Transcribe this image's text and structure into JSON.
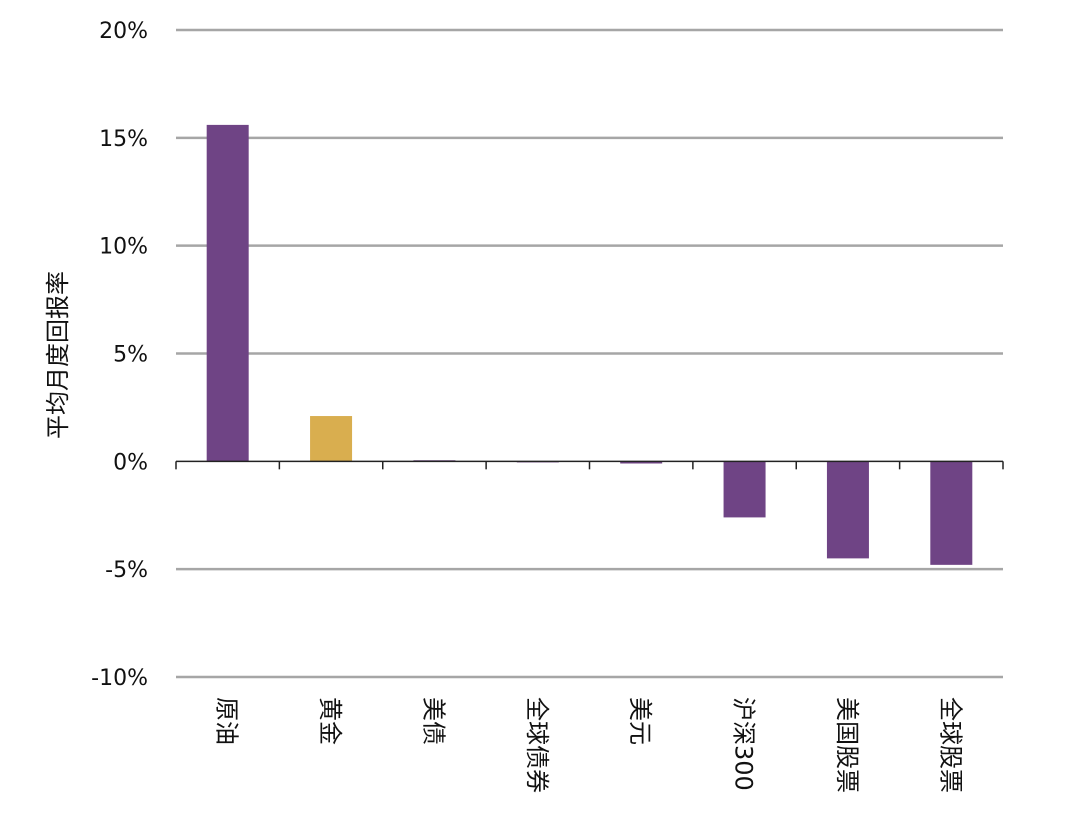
{
  "chart_data": {
    "type": "bar",
    "title": "",
    "xlabel": "",
    "ylabel": "平均月度回报率",
    "categories": [
      "原油",
      "黄金",
      "美债",
      "全球债券",
      "美元",
      "沪深300",
      "美国股票",
      "全球股票"
    ],
    "values": [
      15.6,
      2.1,
      0.05,
      -0.05,
      -0.1,
      -2.6,
      -4.5,
      -4.8
    ],
    "ylim": [
      -10,
      20
    ],
    "yticks": [
      20,
      15,
      10,
      5,
      0,
      -5,
      -10
    ],
    "ytick_labels": [
      "20%",
      "15%",
      "10%",
      "5%",
      "0%",
      "-5%",
      "-10%"
    ],
    "grid": true,
    "legend": "none",
    "colors": {
      "default": "#6f4485",
      "highlight": "#d9ae4f",
      "grid": "#a6a6a6",
      "axis": "#222222"
    },
    "highlight_index": 1
  }
}
